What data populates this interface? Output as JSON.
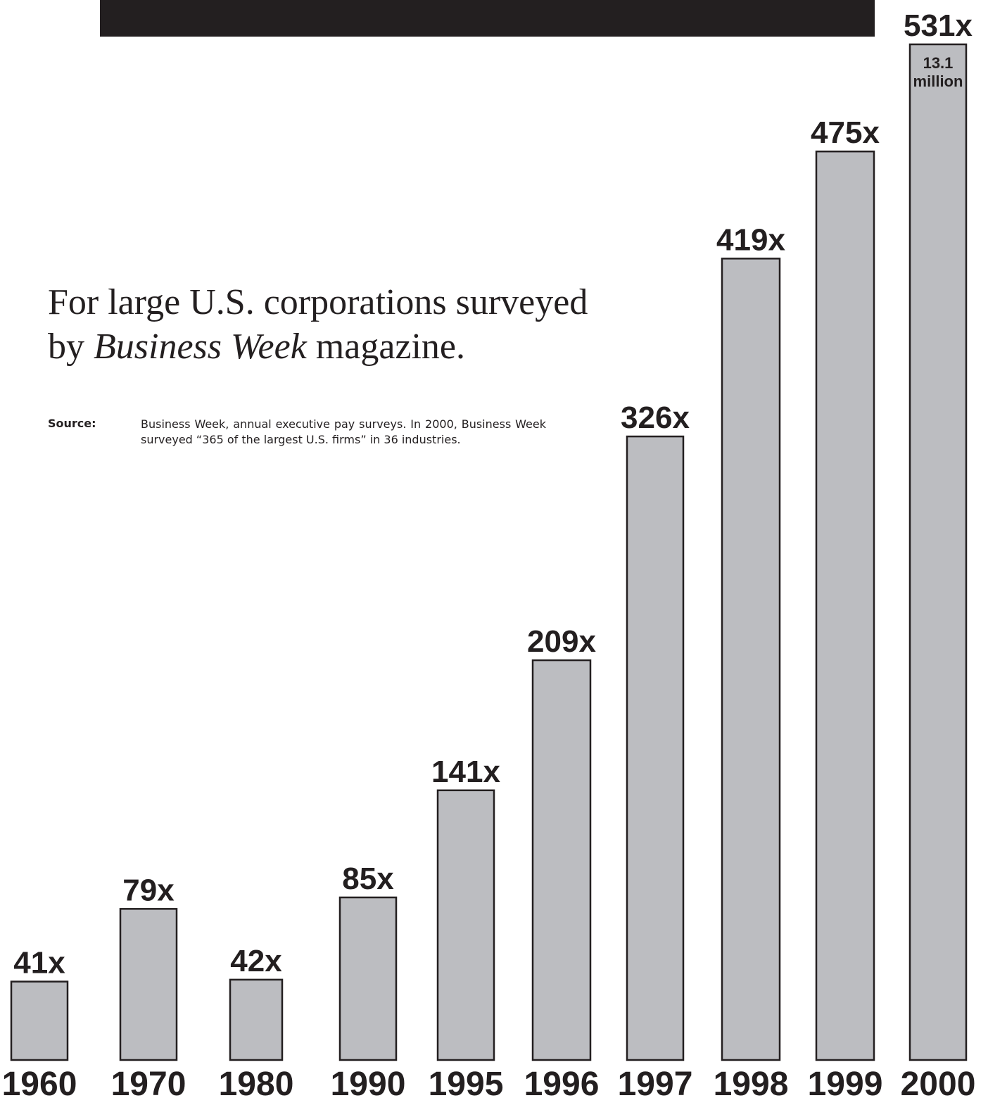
{
  "headline": {
    "line1": "For large U.S. corporations surveyed",
    "line2_prefix": "by ",
    "line2_italic": "Business Week",
    "line2_suffix": " magazine."
  },
  "source": {
    "label": "Source:",
    "text": "Business Week, annual executive pay surveys. In 2000, Business Week surveyed “365 of the largest U.S. firms” in 36 industries."
  },
  "colors": {
    "bar_fill": "#bcbdc1",
    "bar_stroke": "#231f20",
    "ink": "#231f20",
    "band": "#231f20"
  },
  "chart_data": {
    "type": "bar",
    "categories": [
      "1960",
      "1970",
      "1980",
      "1990",
      "1995",
      "1996",
      "1997",
      "1998",
      "1999",
      "2000"
    ],
    "values": [
      41,
      79,
      42,
      85,
      141,
      209,
      326,
      419,
      475,
      531
    ],
    "value_labels": [
      "41x",
      "79x",
      "42x",
      "85x",
      "141x",
      "209x",
      "326x",
      "419x",
      "475x",
      "531x"
    ],
    "annotations": [
      {
        "category": "2000",
        "lines": [
          "13.1",
          "million"
        ]
      }
    ],
    "title": "",
    "xlabel": "",
    "ylabel": "",
    "ylim": [
      0,
      531
    ],
    "grid": false,
    "legend": "none"
  }
}
